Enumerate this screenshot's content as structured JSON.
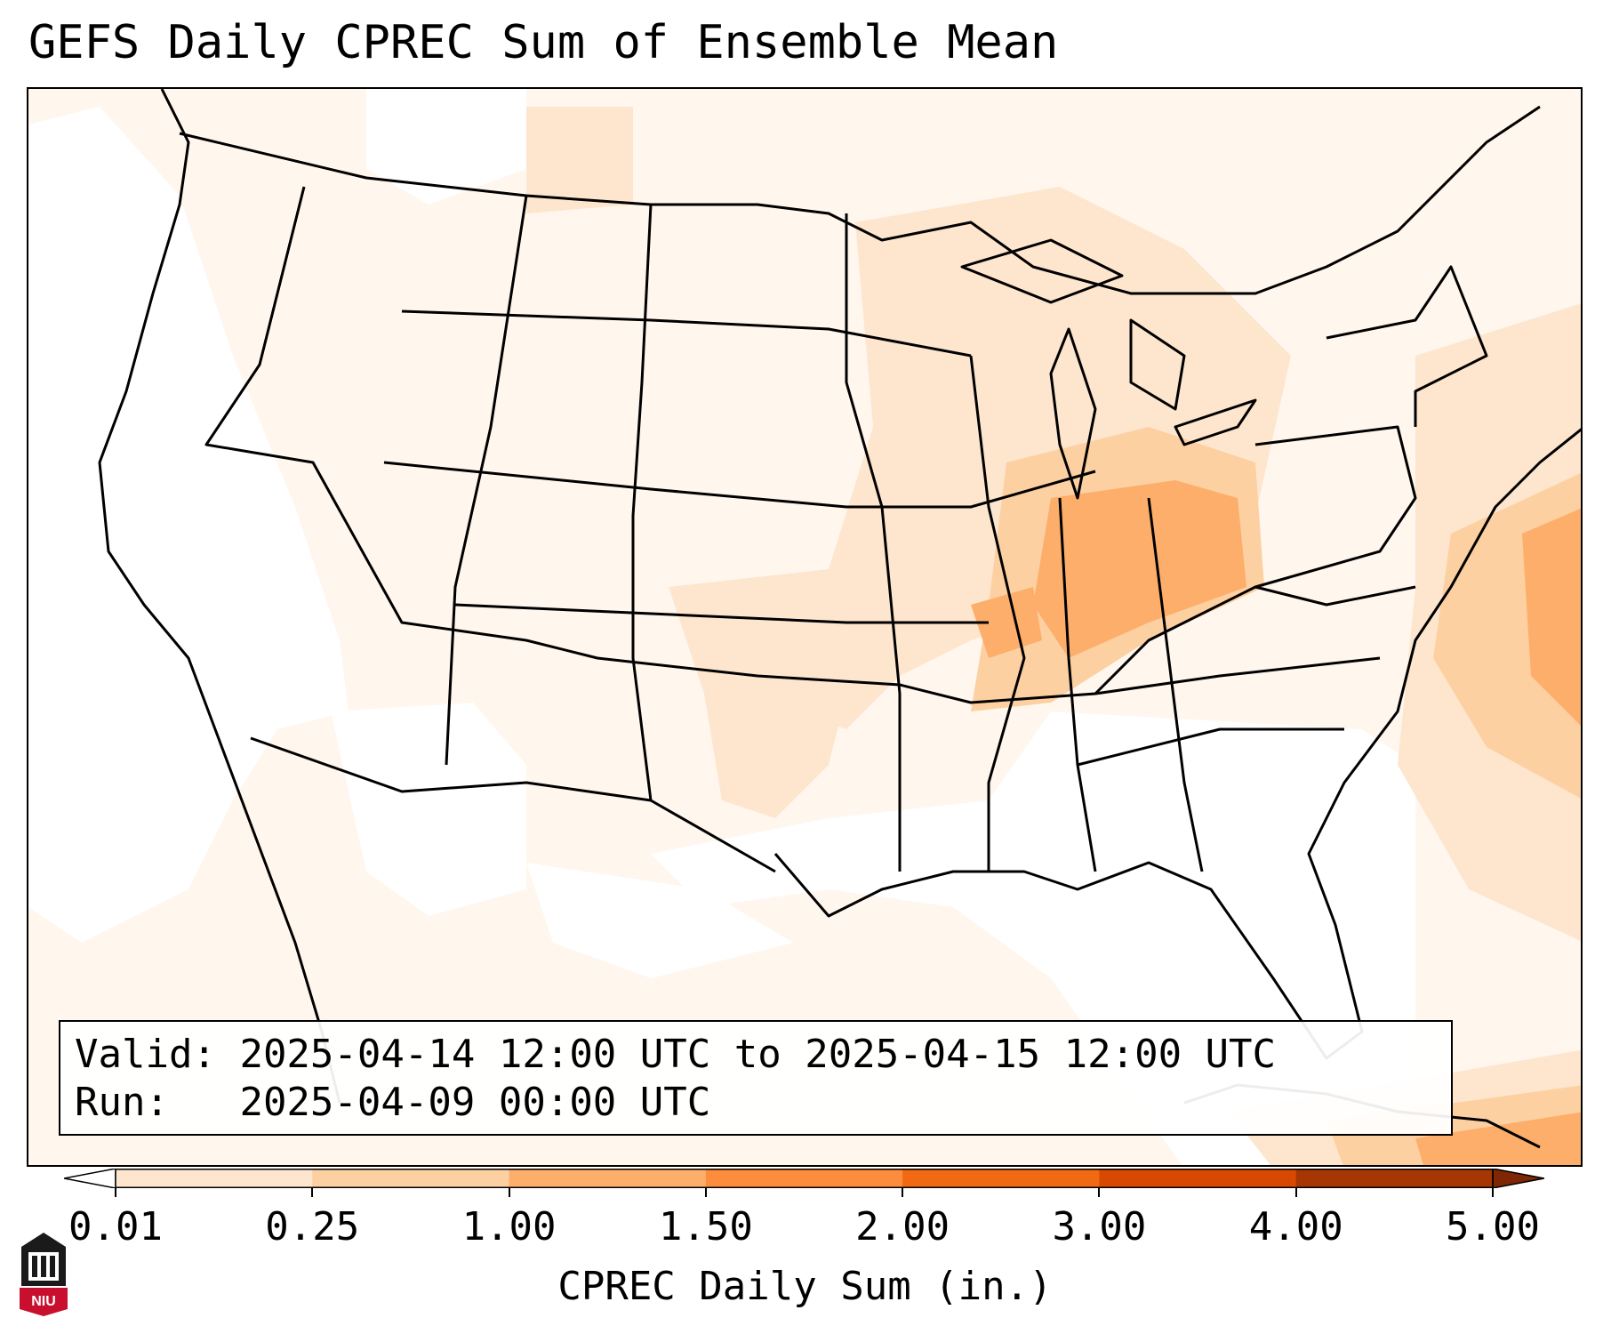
{
  "title": "GEFS Daily CPREC Sum of Ensemble Mean",
  "info": {
    "valid_label": "Valid:",
    "valid_value": "2025-04-14 12:00 UTC to 2025-04-15 12:00 UTC",
    "run_label": "Run:",
    "run_value": "2025-04-09 00:00 UTC"
  },
  "colorbar": {
    "label": "CPREC Daily Sum (in.)",
    "ticks": [
      "0.01",
      "0.25",
      "1.00",
      "1.50",
      "2.00",
      "3.00",
      "4.00",
      "5.00"
    ],
    "colors": [
      "#fff5eb",
      "#fee6ce",
      "#fdd0a2",
      "#fdae6b",
      "#fd8d3c",
      "#f16913",
      "#d94801",
      "#a63603"
    ],
    "under_color": "#ffffff",
    "over_color": "#7f2704"
  },
  "map": {
    "projection": "Lambert conformal, CONUS",
    "max_region": "Indiana / Ohio / Kentucky",
    "high_shades": [
      "#fdd0a2",
      "#fdae6b",
      "#fd8d3c",
      "#f16913"
    ]
  },
  "logo": {
    "text": "NIU",
    "color": "#c8102e"
  }
}
